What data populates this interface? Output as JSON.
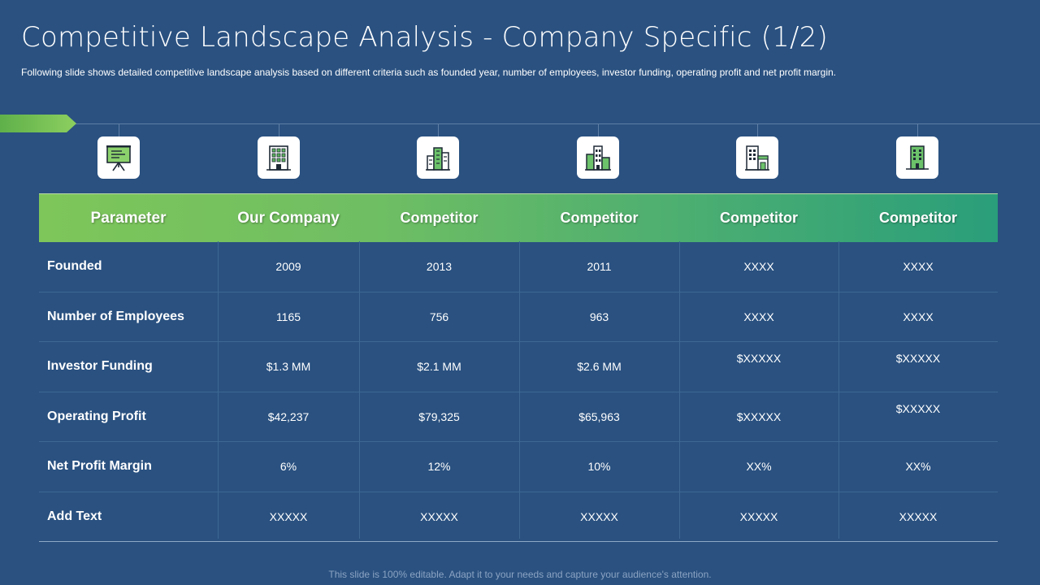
{
  "title": "Competitive Landscape Analysis - Company Specific (1/2)",
  "subtitle": "Following slide shows detailed competitive landscape analysis based on different criteria such as founded year, number of employees, investor funding, operating profit and net profit margin.",
  "icons": [
    "presentation-board-icon",
    "office-building-icon",
    "city-buildings-icon",
    "skyline-icon",
    "store-building-icon",
    "tower-building-icon"
  ],
  "colors": {
    "background": "#2a5180",
    "header_start": "#7ec65a",
    "header_end": "#2a9e7a",
    "accent_arrow": "#7ec65a"
  },
  "table": {
    "headers": [
      "Parameter",
      "Our Company",
      "Competitor",
      "Competitor",
      "Competitor",
      "Competitor"
    ],
    "rows": [
      {
        "param": "Founded",
        "values": [
          "2009",
          "2013",
          "2011",
          "XXXX",
          "XXXX"
        ]
      },
      {
        "param": "Number of Employees",
        "values": [
          "1165",
          "756",
          "963",
          "XXXX",
          "XXXX"
        ]
      },
      {
        "param": "Investor Funding",
        "values": [
          "$1.3 MM",
          "$2.1 MM",
          "$2.6 MM",
          "$XXXXX",
          "$XXXXX"
        ]
      },
      {
        "param": "Operating Profit",
        "values": [
          "$42,237",
          "$79,325",
          "$65,963",
          "$XXXXX",
          "$XXXXX"
        ]
      },
      {
        "param": "Net Profit Margin",
        "values": [
          "6%",
          "12%",
          "10%",
          "XX%",
          "XX%"
        ]
      },
      {
        "param": "Add Text",
        "values": [
          "XXXXX",
          "XXXXX",
          "XXXXX",
          "XXXXX",
          "XXXXX"
        ]
      }
    ]
  },
  "footer": "This slide is 100% editable. Adapt it to your needs and capture your audience's attention."
}
